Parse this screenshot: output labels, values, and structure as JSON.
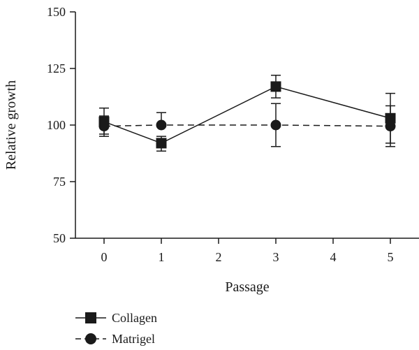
{
  "chart_data": {
    "type": "line",
    "xlabel": "Passage",
    "ylabel": "Relative growth",
    "xlim": [
      -0.5,
      5.5
    ],
    "ylim": [
      50,
      150
    ],
    "x_ticks": [
      0,
      1,
      2,
      3,
      4,
      5
    ],
    "y_ticks": [
      50,
      75,
      100,
      125,
      150
    ],
    "grid": false,
    "legend_position": "bottom-left",
    "series": [
      {
        "name": "Collagen",
        "marker": "square",
        "line_style": "solid",
        "color": "#1a1a1a",
        "points": [
          {
            "x": 0,
            "y": 101.5,
            "err_low": 96,
            "err_high": 107.5
          },
          {
            "x": 1,
            "y": 92,
            "err_low": 88.5,
            "err_high": 95
          },
          {
            "x": 3,
            "y": 117,
            "err_low": 112,
            "err_high": 122
          },
          {
            "x": 5,
            "y": 103,
            "err_low": 92,
            "err_high": 114
          }
        ]
      },
      {
        "name": "Matrigel",
        "marker": "circle",
        "line_style": "dashed",
        "color": "#1a1a1a",
        "points": [
          {
            "x": 0,
            "y": 99.5,
            "err_low": 95,
            "err_high": 104
          },
          {
            "x": 1,
            "y": 100,
            "err_low": 100,
            "err_high": 105.5
          },
          {
            "x": 3,
            "y": 100,
            "err_low": 90.5,
            "err_high": 109.5
          },
          {
            "x": 5,
            "y": 99.5,
            "err_low": 90.5,
            "err_high": 108.5
          }
        ]
      }
    ]
  }
}
